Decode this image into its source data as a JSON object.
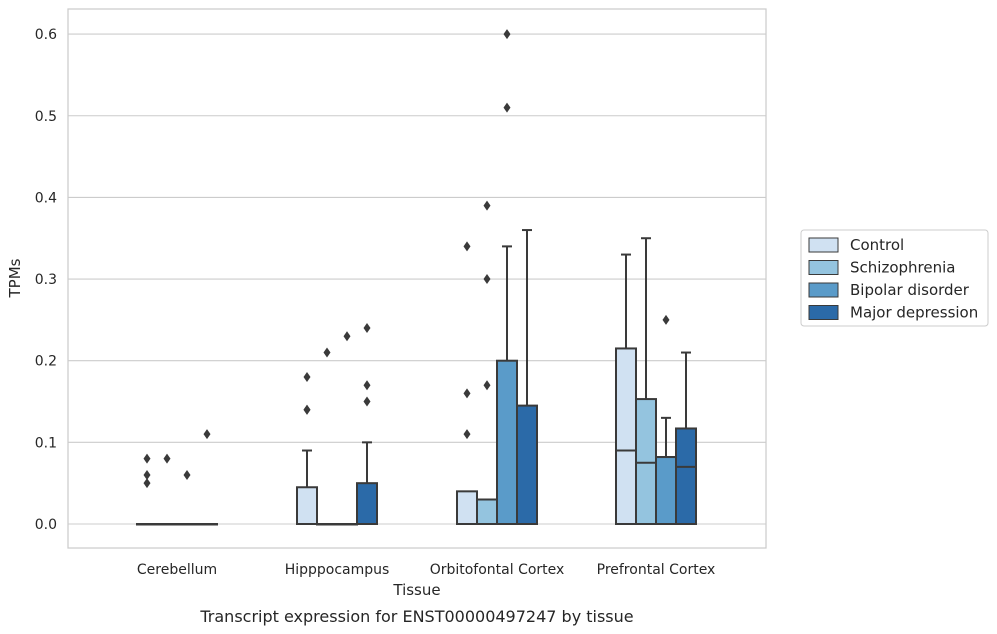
{
  "chart_data": {
    "type": "box",
    "xlabel": "Tissue",
    "ylabel": "TPMs",
    "caption": "Transcript expression for ENST00000497247 by tissue",
    "ylim": [
      -0.03,
      0.63
    ],
    "yticks": [
      0.0,
      0.1,
      0.2,
      0.3,
      0.4,
      0.5,
      0.6
    ],
    "ytick_labels": [
      "0.0",
      "0.1",
      "0.2",
      "0.3",
      "0.4",
      "0.5",
      "0.6"
    ],
    "categories": [
      "Cerebellum",
      "Hipppocampus",
      "Orbitofontal Cortex",
      "Prefrontal Cortex"
    ],
    "grid": "horizontal",
    "legend_position": "right",
    "series": [
      {
        "name": "Control",
        "color": "#d0e1f2",
        "boxes": [
          {
            "q1": 0.0,
            "median": 0.0,
            "q3": 0.0,
            "whisker_low": 0.0,
            "whisker_high": 0.0,
            "outliers": [
              0.05,
              0.06,
              0.08
            ]
          },
          {
            "q1": 0.0,
            "median": 0.0,
            "q3": 0.045,
            "whisker_low": 0.0,
            "whisker_high": 0.09,
            "outliers": [
              0.14,
              0.14,
              0.18
            ]
          },
          {
            "q1": 0.0,
            "median": 0.0,
            "q3": 0.04,
            "whisker_low": 0.0,
            "whisker_high": 0.04,
            "outliers": [
              0.11,
              0.16,
              0.34
            ]
          },
          {
            "q1": 0.0,
            "median": 0.09,
            "q3": 0.215,
            "whisker_low": 0.0,
            "whisker_high": 0.33,
            "outliers": []
          }
        ]
      },
      {
        "name": "Schizophrenia",
        "color": "#94c4df",
        "boxes": [
          {
            "q1": 0.0,
            "median": 0.0,
            "q3": 0.0,
            "whisker_low": 0.0,
            "whisker_high": 0.0,
            "outliers": [
              0.08
            ]
          },
          {
            "q1": 0.0,
            "median": 0.0,
            "q3": 0.0,
            "whisker_low": 0.0,
            "whisker_high": 0.0,
            "outliers": [
              0.21
            ]
          },
          {
            "q1": 0.0,
            "median": 0.0,
            "q3": 0.03,
            "whisker_low": 0.0,
            "whisker_high": 0.03,
            "outliers": [
              0.17,
              0.3,
              0.39
            ]
          },
          {
            "q1": 0.0,
            "median": 0.075,
            "q3": 0.153,
            "whisker_low": 0.0,
            "whisker_high": 0.35,
            "outliers": []
          }
        ]
      },
      {
        "name": "Bipolar disorder",
        "color": "#5a9bc9",
        "boxes": [
          {
            "q1": 0.0,
            "median": 0.0,
            "q3": 0.0,
            "whisker_low": 0.0,
            "whisker_high": 0.0,
            "outliers": [
              0.06
            ]
          },
          {
            "q1": 0.0,
            "median": 0.0,
            "q3": 0.0,
            "whisker_low": 0.0,
            "whisker_high": 0.0,
            "outliers": [
              0.23
            ]
          },
          {
            "q1": 0.0,
            "median": 0.0,
            "q3": 0.2,
            "whisker_low": 0.0,
            "whisker_high": 0.34,
            "outliers": [
              0.51,
              0.6
            ]
          },
          {
            "q1": 0.0,
            "median": 0.082,
            "q3": 0.082,
            "whisker_low": 0.0,
            "whisker_high": 0.13,
            "outliers": [
              0.25
            ]
          }
        ]
      },
      {
        "name": "Major depression",
        "color": "#2b6aa8",
        "boxes": [
          {
            "q1": 0.0,
            "median": 0.0,
            "q3": 0.0,
            "whisker_low": 0.0,
            "whisker_high": 0.0,
            "outliers": [
              0.11
            ]
          },
          {
            "q1": 0.0,
            "median": 0.0,
            "q3": 0.05,
            "whisker_low": 0.0,
            "whisker_high": 0.1,
            "outliers": [
              0.15,
              0.17,
              0.24
            ]
          },
          {
            "q1": 0.0,
            "median": 0.0,
            "q3": 0.145,
            "whisker_low": 0.0,
            "whisker_high": 0.36,
            "outliers": []
          },
          {
            "q1": 0.0,
            "median": 0.07,
            "q3": 0.117,
            "whisker_low": 0.0,
            "whisker_high": 0.21,
            "outliers": []
          }
        ]
      }
    ]
  }
}
